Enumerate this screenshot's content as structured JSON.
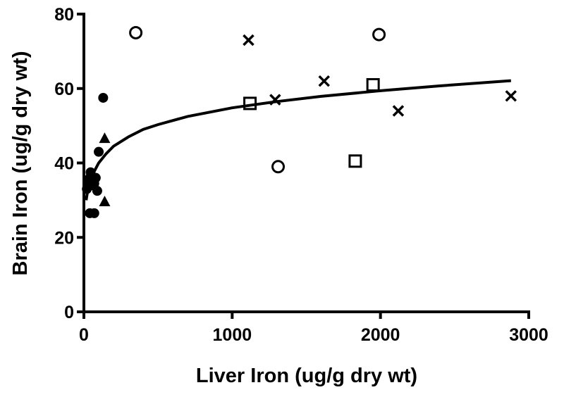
{
  "chart_data": {
    "type": "scatter",
    "title": "",
    "xlabel": "Liver Iron (ug/g dry wt)",
    "ylabel": "Brain Iron (ug/g dry wt)",
    "xlim": [
      0,
      3000
    ],
    "ylim": [
      0,
      80
    ],
    "x_ticks": [
      0,
      1000,
      2000,
      3000
    ],
    "y_ticks": [
      0,
      20,
      40,
      60,
      80
    ],
    "grid": false,
    "legend": "none",
    "series": [
      {
        "marker": "filled-circle",
        "points": [
          [
            20,
            33
          ],
          [
            30,
            35
          ],
          [
            40,
            36
          ],
          [
            45,
            37.5
          ],
          [
            55,
            34
          ],
          [
            60,
            35
          ],
          [
            70,
            34.5
          ],
          [
            80,
            36
          ],
          [
            90,
            32.5
          ],
          [
            100,
            43
          ],
          [
            130,
            57.5
          ],
          [
            40,
            26.5
          ],
          [
            70,
            26.5
          ]
        ]
      },
      {
        "marker": "filled-triangle",
        "points": [
          [
            140,
            46.5
          ],
          [
            140,
            29.5
          ]
        ]
      },
      {
        "marker": "open-circle",
        "points": [
          [
            350,
            75
          ],
          [
            1310,
            39
          ],
          [
            1990,
            74.5
          ]
        ]
      },
      {
        "marker": "open-square",
        "points": [
          [
            1120,
            56
          ],
          [
            1830,
            40.5
          ],
          [
            1950,
            61
          ]
        ]
      },
      {
        "marker": "x-cross",
        "points": [
          [
            1110,
            73
          ],
          [
            1290,
            57
          ],
          [
            1620,
            62
          ],
          [
            2120,
            54
          ],
          [
            2880,
            58
          ]
        ]
      }
    ],
    "fit_curve": {
      "type": "logarithmic",
      "points": [
        [
          15,
          30
        ],
        [
          30,
          33.6
        ],
        [
          60,
          37
        ],
        [
          100,
          40
        ],
        [
          150,
          42.5
        ],
        [
          200,
          44.5
        ],
        [
          300,
          47
        ],
        [
          400,
          49
        ],
        [
          500,
          50.3
        ],
        [
          700,
          52.5
        ],
        [
          1000,
          54.8
        ],
        [
          1300,
          56.5
        ],
        [
          1600,
          57.9
        ],
        [
          2000,
          59.4
        ],
        [
          2400,
          60.7
        ],
        [
          2880,
          62.1
        ]
      ]
    }
  }
}
